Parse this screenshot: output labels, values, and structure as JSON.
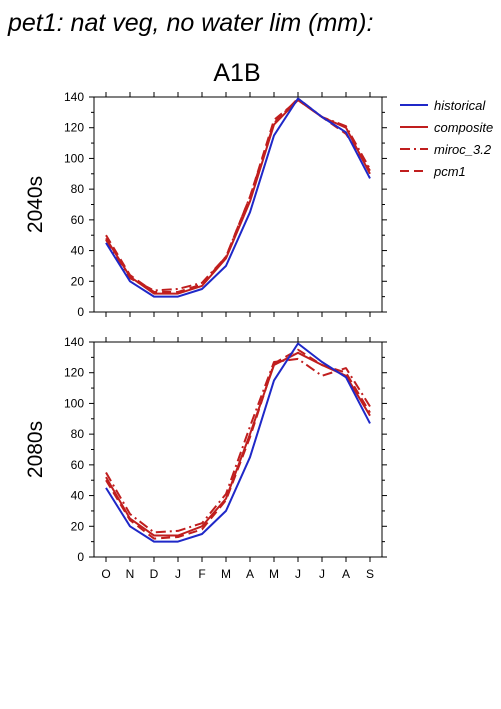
{
  "page_title": "pet1: nat veg, no water lim (mm):",
  "chart_data": {
    "type": "line",
    "title": "A1B",
    "categories": [
      "O",
      "N",
      "D",
      "J",
      "F",
      "M",
      "A",
      "M",
      "J",
      "J",
      "A",
      "S"
    ],
    "ylim": [
      0,
      140
    ],
    "yticks": [
      "0",
      "20",
      "40",
      "60",
      "80",
      "100",
      "120",
      "140"
    ],
    "grid": false,
    "legend_position": "top-right, outside plot",
    "legend": [
      {
        "name": "historical",
        "color": "#1f28c8",
        "style": "solid"
      },
      {
        "name": "composite",
        "color": "#c01e1e",
        "style": "solid"
      },
      {
        "name": "miroc_3.2",
        "color": "#c01e1e",
        "style": "dash-dot"
      },
      {
        "name": "pcm1",
        "color": "#c01e1e",
        "style": "dashed"
      }
    ],
    "panels": [
      {
        "label": "2040s",
        "series": [
          {
            "name": "historical",
            "values": [
              45,
              20,
              10,
              10,
              15,
              30,
              65,
              115,
              139,
              127,
              117,
              87
            ]
          },
          {
            "name": "composite",
            "values": [
              48,
              23,
              12,
              12,
              17,
              35,
              72,
              122,
              138,
              127,
              120,
              90
            ]
          },
          {
            "name": "miroc_3.2",
            "values": [
              47,
              22,
              14,
              15,
              19,
              36,
              75,
              123,
              139,
              127,
              121,
              93
            ]
          },
          {
            "name": "pcm1",
            "values": [
              50,
              24,
              13,
              13,
              18,
              36,
              75,
              125,
              138,
              127,
              116,
              92
            ]
          }
        ]
      },
      {
        "label": "2080s",
        "series": [
          {
            "name": "historical",
            "values": [
              45,
              20,
              10,
              10,
              15,
              30,
              65,
              115,
              139,
              127,
              117,
              87
            ]
          },
          {
            "name": "composite",
            "values": [
              52,
              25,
              14,
              14,
              20,
              38,
              80,
              125,
              133,
              125,
              118,
              92
            ]
          },
          {
            "name": "miroc_3.2",
            "values": [
              55,
              28,
              16,
              17,
              22,
              41,
              85,
              127,
              129,
              118,
              123,
              98
            ]
          },
          {
            "name": "pcm1",
            "values": [
              50,
              24,
              12,
              13,
              18,
              37,
              78,
              126,
              135,
              125,
              120,
              94
            ]
          }
        ]
      }
    ]
  }
}
